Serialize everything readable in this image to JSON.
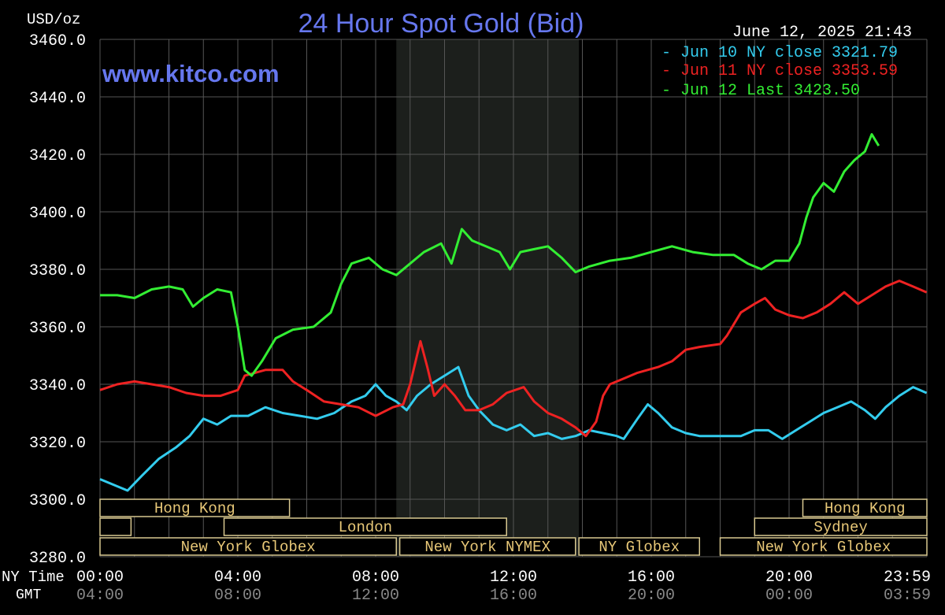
{
  "chart_data": {
    "type": "line",
    "title": "24 Hour Spot Gold (Bid)",
    "unit_label": "USD/oz",
    "timestamp": "June 12, 2025 21:43",
    "website": "www.kitco.com",
    "x_axis_ny_label": "NY Time",
    "x_axis_gmt_label": "GMT",
    "x_ticks_ny": [
      "00:00",
      "04:00",
      "08:00",
      "12:00",
      "16:00",
      "20:00",
      "23:59"
    ],
    "x_ticks_gmt": [
      "04:00",
      "08:00",
      "12:00",
      "16:00",
      "20:00",
      "00:00",
      "03:59"
    ],
    "xlim_hours": [
      0,
      24
    ],
    "ylim": [
      3280,
      3460
    ],
    "y_ticks": [
      "3280.0",
      "3300.0",
      "3320.0",
      "3340.0",
      "3360.0",
      "3380.0",
      "3400.0",
      "3420.0",
      "3440.0",
      "3460.0"
    ],
    "shaded_session_hours": [
      8.6,
      13.9
    ],
    "grid": true,
    "legend_position": "top-right",
    "series": [
      {
        "name": "Jun 10 NY close 3321.79",
        "color": "#33CCEE",
        "points": [
          [
            0,
            3307
          ],
          [
            0.4,
            3305
          ],
          [
            0.8,
            3303
          ],
          [
            1.2,
            3308
          ],
          [
            1.7,
            3314
          ],
          [
            2.2,
            3318
          ],
          [
            2.6,
            3322
          ],
          [
            3.0,
            3328
          ],
          [
            3.4,
            3326
          ],
          [
            3.8,
            3329
          ],
          [
            4.3,
            3329
          ],
          [
            4.8,
            3332
          ],
          [
            5.3,
            3330
          ],
          [
            5.8,
            3329
          ],
          [
            6.3,
            3328
          ],
          [
            6.8,
            3330
          ],
          [
            7.3,
            3334
          ],
          [
            7.7,
            3336
          ],
          [
            8.0,
            3340
          ],
          [
            8.3,
            3336
          ],
          [
            8.6,
            3334
          ],
          [
            8.9,
            3331
          ],
          [
            9.2,
            3336
          ],
          [
            9.6,
            3340
          ],
          [
            10.0,
            3343
          ],
          [
            10.4,
            3346
          ],
          [
            10.7,
            3336
          ],
          [
            11.0,
            3331
          ],
          [
            11.4,
            3326
          ],
          [
            11.8,
            3324
          ],
          [
            12.2,
            3326
          ],
          [
            12.6,
            3322
          ],
          [
            13.0,
            3323
          ],
          [
            13.4,
            3321
          ],
          [
            13.8,
            3322
          ],
          [
            14.2,
            3324
          ],
          [
            14.6,
            3323
          ],
          [
            15.0,
            3322
          ],
          [
            15.2,
            3321
          ],
          [
            15.6,
            3328
          ],
          [
            15.9,
            3333
          ],
          [
            16.2,
            3330
          ],
          [
            16.6,
            3325
          ],
          [
            17.0,
            3323
          ],
          [
            17.4,
            3322
          ],
          [
            18.0,
            3322
          ],
          [
            18.6,
            3322
          ],
          [
            19.0,
            3324
          ],
          [
            19.4,
            3324
          ],
          [
            19.8,
            3321
          ],
          [
            20.2,
            3324
          ],
          [
            20.6,
            3327
          ],
          [
            21.0,
            3330
          ],
          [
            21.4,
            3332
          ],
          [
            21.8,
            3334
          ],
          [
            22.2,
            3331
          ],
          [
            22.5,
            3328
          ],
          [
            22.8,
            3332
          ],
          [
            23.2,
            3336
          ],
          [
            23.6,
            3339
          ],
          [
            23.99,
            3337
          ]
        ]
      },
      {
        "name": "Jun 11 NY close 3353.59",
        "color": "#EE2222",
        "points": [
          [
            0,
            3338
          ],
          [
            0.5,
            3340
          ],
          [
            1.0,
            3341
          ],
          [
            1.5,
            3340
          ],
          [
            2.0,
            3339
          ],
          [
            2.5,
            3337
          ],
          [
            3.0,
            3336
          ],
          [
            3.5,
            3336
          ],
          [
            4.0,
            3338
          ],
          [
            4.2,
            3343
          ],
          [
            4.8,
            3345
          ],
          [
            5.3,
            3345
          ],
          [
            5.6,
            3341
          ],
          [
            6.0,
            3338
          ],
          [
            6.5,
            3334
          ],
          [
            7.0,
            3333
          ],
          [
            7.5,
            3332
          ],
          [
            8.0,
            3329
          ],
          [
            8.5,
            3332
          ],
          [
            8.8,
            3333
          ],
          [
            9.0,
            3340
          ],
          [
            9.2,
            3350
          ],
          [
            9.3,
            3355
          ],
          [
            9.5,
            3346
          ],
          [
            9.7,
            3336
          ],
          [
            10.0,
            3340
          ],
          [
            10.3,
            3336
          ],
          [
            10.6,
            3331
          ],
          [
            11.0,
            3331
          ],
          [
            11.4,
            3333
          ],
          [
            11.8,
            3337
          ],
          [
            12.3,
            3339
          ],
          [
            12.6,
            3334
          ],
          [
            13.0,
            3330
          ],
          [
            13.4,
            3328
          ],
          [
            13.8,
            3325
          ],
          [
            14.1,
            3322
          ],
          [
            14.4,
            3327
          ],
          [
            14.6,
            3336
          ],
          [
            14.8,
            3340
          ],
          [
            15.2,
            3342
          ],
          [
            15.6,
            3344
          ],
          [
            16.2,
            3346
          ],
          [
            16.6,
            3348
          ],
          [
            17.0,
            3352
          ],
          [
            17.4,
            3353
          ],
          [
            18.0,
            3354
          ],
          [
            18.2,
            3357
          ],
          [
            18.6,
            3365
          ],
          [
            19.0,
            3368
          ],
          [
            19.3,
            3370
          ],
          [
            19.6,
            3366
          ],
          [
            20.0,
            3364
          ],
          [
            20.4,
            3363
          ],
          [
            20.8,
            3365
          ],
          [
            21.2,
            3368
          ],
          [
            21.6,
            3372
          ],
          [
            22.0,
            3368
          ],
          [
            22.4,
            3371
          ],
          [
            22.8,
            3374
          ],
          [
            23.2,
            3376
          ],
          [
            23.6,
            3374
          ],
          [
            23.99,
            3372
          ]
        ]
      },
      {
        "name": "Jun 12 Last 3423.50",
        "color": "#33EE33",
        "points": [
          [
            0,
            3371
          ],
          [
            0.5,
            3371
          ],
          [
            1.0,
            3370
          ],
          [
            1.5,
            3373
          ],
          [
            2.0,
            3374
          ],
          [
            2.4,
            3373
          ],
          [
            2.7,
            3367
          ],
          [
            3.0,
            3370
          ],
          [
            3.4,
            3373
          ],
          [
            3.8,
            3372
          ],
          [
            4.0,
            3360
          ],
          [
            4.2,
            3345
          ],
          [
            4.4,
            3343
          ],
          [
            4.7,
            3348
          ],
          [
            5.1,
            3356
          ],
          [
            5.6,
            3359
          ],
          [
            6.2,
            3360
          ],
          [
            6.7,
            3365
          ],
          [
            7.0,
            3375
          ],
          [
            7.3,
            3382
          ],
          [
            7.8,
            3384
          ],
          [
            8.2,
            3380
          ],
          [
            8.6,
            3378
          ],
          [
            9.0,
            3382
          ],
          [
            9.4,
            3386
          ],
          [
            9.9,
            3389
          ],
          [
            10.2,
            3382
          ],
          [
            10.5,
            3394
          ],
          [
            10.8,
            3390
          ],
          [
            11.2,
            3388
          ],
          [
            11.6,
            3386
          ],
          [
            11.9,
            3380
          ],
          [
            12.2,
            3386
          ],
          [
            12.6,
            3387
          ],
          [
            13.0,
            3388
          ],
          [
            13.4,
            3384
          ],
          [
            13.8,
            3379
          ],
          [
            14.2,
            3381
          ],
          [
            14.8,
            3383
          ],
          [
            15.4,
            3384
          ],
          [
            16.0,
            3386
          ],
          [
            16.6,
            3388
          ],
          [
            17.2,
            3386
          ],
          [
            17.8,
            3385
          ],
          [
            18.4,
            3385
          ],
          [
            18.8,
            3382
          ],
          [
            19.2,
            3380
          ],
          [
            19.6,
            3383
          ],
          [
            20.0,
            3383
          ],
          [
            20.3,
            3389
          ],
          [
            20.5,
            3398
          ],
          [
            20.7,
            3405
          ],
          [
            21.0,
            3410
          ],
          [
            21.3,
            3407
          ],
          [
            21.6,
            3414
          ],
          [
            21.9,
            3418
          ],
          [
            22.2,
            3421
          ],
          [
            22.4,
            3427
          ],
          [
            22.6,
            3423
          ]
        ]
      }
    ]
  },
  "sessions": {
    "row1": [
      {
        "label": "Hong Kong",
        "start": 0,
        "end": 5.5
      },
      {
        "label": "Hong Kong",
        "start": 20.4,
        "end": 24
      }
    ],
    "row2": [
      {
        "label": "",
        "start": 0,
        "end": 0.9
      },
      {
        "label": "London",
        "start": 3.6,
        "end": 11.8
      },
      {
        "label": "Sydney",
        "start": 19.0,
        "end": 24
      }
    ],
    "row3": [
      {
        "label": "New York Globex",
        "start": 0,
        "end": 8.6
      },
      {
        "label": "New York NYMEX",
        "start": 8.7,
        "end": 13.8
      },
      {
        "label": "NY Globex",
        "start": 13.9,
        "end": 17.4
      },
      {
        "label": "New York Globex",
        "start": 18.0,
        "end": 24
      }
    ]
  }
}
